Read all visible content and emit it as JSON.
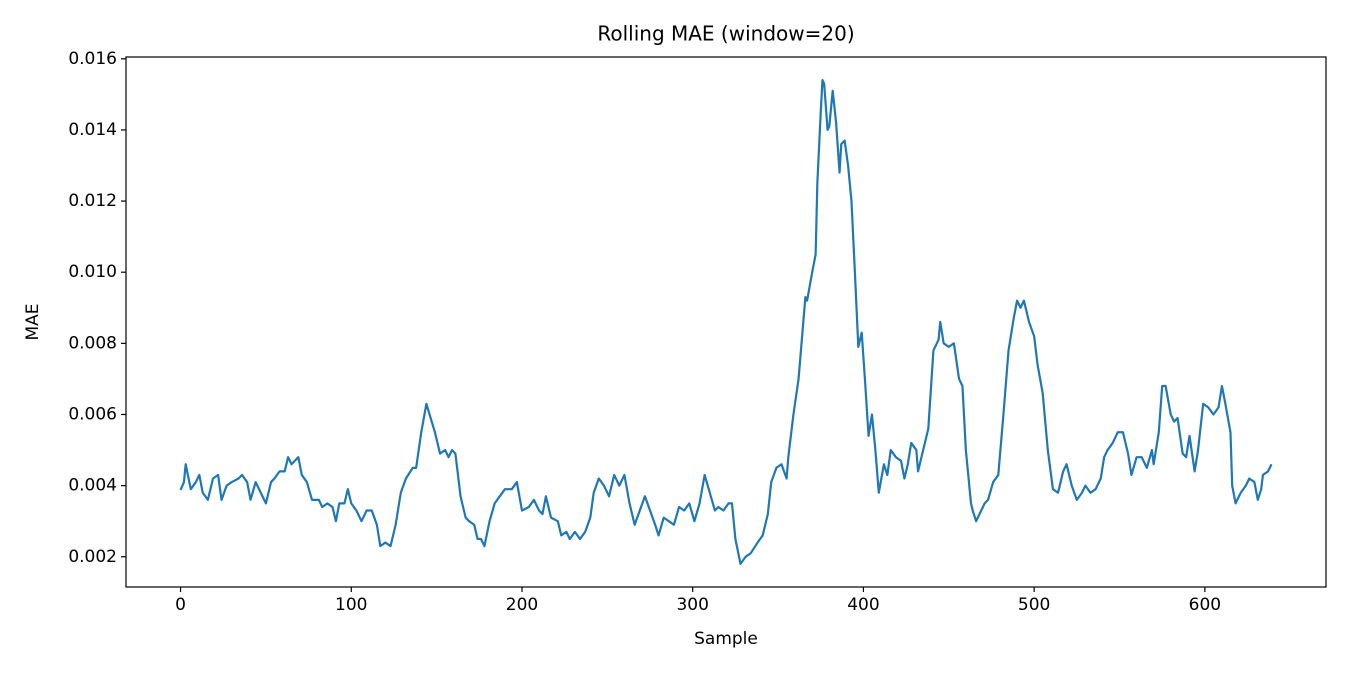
{
  "chart_data": {
    "type": "line",
    "title": "Rolling MAE (window=20)",
    "xlabel": "Sample",
    "ylabel": "MAE",
    "color": "#1f77b4",
    "grid": false,
    "xlim": [
      -31.95,
      670.95
    ],
    "ylim": [
      0.00115,
      0.01605
    ],
    "xticks": [
      0,
      100,
      200,
      300,
      400,
      500,
      600
    ],
    "yticks": [
      {
        "value": 0.002,
        "label": "0.002"
      },
      {
        "value": 0.004,
        "label": "0.004"
      },
      {
        "value": 0.006,
        "label": "0.006"
      },
      {
        "value": 0.008,
        "label": "0.008"
      },
      {
        "value": 0.01,
        "label": "0.010"
      },
      {
        "value": 0.012,
        "label": "0.012"
      },
      {
        "value": 0.014,
        "label": "0.014"
      },
      {
        "value": 0.016,
        "label": "0.016"
      }
    ],
    "x": [
      0,
      2,
      3,
      6,
      9,
      11,
      13,
      16,
      19,
      22,
      24,
      27,
      30,
      34,
      36,
      39,
      41,
      44,
      47,
      50,
      53,
      55,
      58,
      61,
      63,
      65,
      69,
      71,
      74,
      77,
      81,
      83,
      86,
      89,
      91,
      93,
      96,
      98,
      100,
      103,
      106,
      109,
      112,
      115,
      117,
      120,
      123,
      126,
      129,
      132,
      136,
      138,
      141,
      144,
      149,
      152,
      155,
      157,
      159,
      161,
      164,
      167,
      169,
      172,
      174,
      176,
      178,
      181,
      184,
      190,
      194,
      197,
      200,
      204,
      207,
      210,
      212,
      214,
      217,
      221,
      223,
      226,
      228,
      231,
      234,
      237,
      240,
      242,
      245,
      248,
      251,
      254,
      257,
      260,
      263,
      266,
      269,
      272,
      275,
      278,
      280,
      283,
      286,
      289,
      292,
      295,
      298,
      301,
      304,
      307,
      310,
      313,
      315,
      318,
      321,
      323,
      325,
      328,
      331,
      334,
      338,
      341,
      344,
      346,
      349,
      352,
      355,
      356,
      359,
      362,
      366,
      367,
      370,
      372,
      373,
      375,
      376,
      377,
      379,
      380,
      382,
      384,
      386,
      387,
      389,
      391,
      393,
      395,
      397,
      399,
      401,
      403,
      405,
      407,
      409,
      412,
      414,
      416,
      419,
      422,
      424,
      426,
      428,
      431,
      432,
      435,
      438,
      441,
      444,
      445,
      447,
      450,
      453,
      456,
      458,
      460,
      463,
      464,
      466,
      469,
      471,
      473,
      476,
      479,
      482,
      485,
      488,
      490,
      492,
      494,
      497,
      500,
      502,
      505,
      508,
      511,
      514,
      517,
      519,
      522,
      525,
      528,
      530,
      533,
      536,
      539,
      541,
      543,
      546,
      549,
      552,
      555,
      557,
      560,
      563,
      566,
      569,
      570,
      573,
      575,
      577,
      580,
      582,
      584,
      587,
      589,
      591,
      594,
      596,
      599,
      602,
      605,
      608,
      610,
      612,
      615,
      616,
      618,
      621,
      624,
      626,
      629,
      631,
      633,
      634,
      637,
      639
    ],
    "values": [
      0.00388,
      0.0041,
      0.0046,
      0.0039,
      0.0041,
      0.0043,
      0.0038,
      0.0036,
      0.0042,
      0.0043,
      0.0036,
      0.004,
      0.0041,
      0.0042,
      0.0043,
      0.0041,
      0.0036,
      0.0041,
      0.0038,
      0.0035,
      0.0041,
      0.0042,
      0.0044,
      0.0044,
      0.0048,
      0.0046,
      0.0048,
      0.0043,
      0.0041,
      0.0036,
      0.0036,
      0.0034,
      0.0035,
      0.0034,
      0.003,
      0.0035,
      0.0035,
      0.0039,
      0.0035,
      0.0033,
      0.003,
      0.0033,
      0.0033,
      0.0029,
      0.0023,
      0.0024,
      0.0023,
      0.0029,
      0.0038,
      0.0042,
      0.0045,
      0.0045,
      0.0055,
      0.0063,
      0.0055,
      0.0049,
      0.005,
      0.0048,
      0.005,
      0.0049,
      0.0037,
      0.0031,
      0.003,
      0.0029,
      0.0025,
      0.0025,
      0.0023,
      0.003,
      0.0035,
      0.0039,
      0.0039,
      0.0041,
      0.0033,
      0.0034,
      0.0036,
      0.0033,
      0.0032,
      0.0037,
      0.0031,
      0.003,
      0.0026,
      0.0027,
      0.0025,
      0.0027,
      0.0025,
      0.0027,
      0.0031,
      0.0038,
      0.0042,
      0.004,
      0.0037,
      0.0043,
      0.004,
      0.0043,
      0.0035,
      0.0029,
      0.0033,
      0.0037,
      0.0033,
      0.0029,
      0.0026,
      0.0031,
      0.003,
      0.0029,
      0.0034,
      0.0033,
      0.0035,
      0.003,
      0.0035,
      0.0043,
      0.0038,
      0.0033,
      0.0034,
      0.0033,
      0.0035,
      0.0035,
      0.0025,
      0.0018,
      0.002,
      0.0021,
      0.0024,
      0.0026,
      0.0032,
      0.0041,
      0.0045,
      0.0046,
      0.0042,
      0.0048,
      0.006,
      0.007,
      0.0093,
      0.0092,
      0.01,
      0.0105,
      0.0125,
      0.0145,
      0.0154,
      0.0153,
      0.014,
      0.0141,
      0.0151,
      0.0142,
      0.0128,
      0.0136,
      0.0137,
      0.013,
      0.012,
      0.01,
      0.0079,
      0.0083,
      0.0069,
      0.0054,
      0.006,
      0.005,
      0.0038,
      0.0046,
      0.0043,
      0.005,
      0.0048,
      0.0047,
      0.0042,
      0.0046,
      0.0052,
      0.005,
      0.0044,
      0.005,
      0.0056,
      0.0078,
      0.0081,
      0.0086,
      0.008,
      0.0079,
      0.008,
      0.007,
      0.0068,
      0.005,
      0.0035,
      0.0033,
      0.003,
      0.0033,
      0.0035,
      0.0036,
      0.0041,
      0.0043,
      0.006,
      0.0078,
      0.0087,
      0.0092,
      0.009,
      0.0092,
      0.0086,
      0.0082,
      0.0074,
      0.0066,
      0.005,
      0.0039,
      0.0038,
      0.0044,
      0.0046,
      0.004,
      0.0036,
      0.0038,
      0.004,
      0.0038,
      0.0039,
      0.0042,
      0.0048,
      0.005,
      0.0052,
      0.0055,
      0.0055,
      0.0049,
      0.0043,
      0.0048,
      0.0048,
      0.0045,
      0.005,
      0.0046,
      0.0055,
      0.0068,
      0.0068,
      0.006,
      0.0058,
      0.0059,
      0.0049,
      0.0048,
      0.0054,
      0.0044,
      0.005,
      0.0063,
      0.0062,
      0.006,
      0.0062,
      0.0068,
      0.0063,
      0.0055,
      0.004,
      0.0035,
      0.0038,
      0.004,
      0.0042,
      0.0041,
      0.0036,
      0.0039,
      0.0043,
      0.0044,
      0.0046
    ]
  }
}
